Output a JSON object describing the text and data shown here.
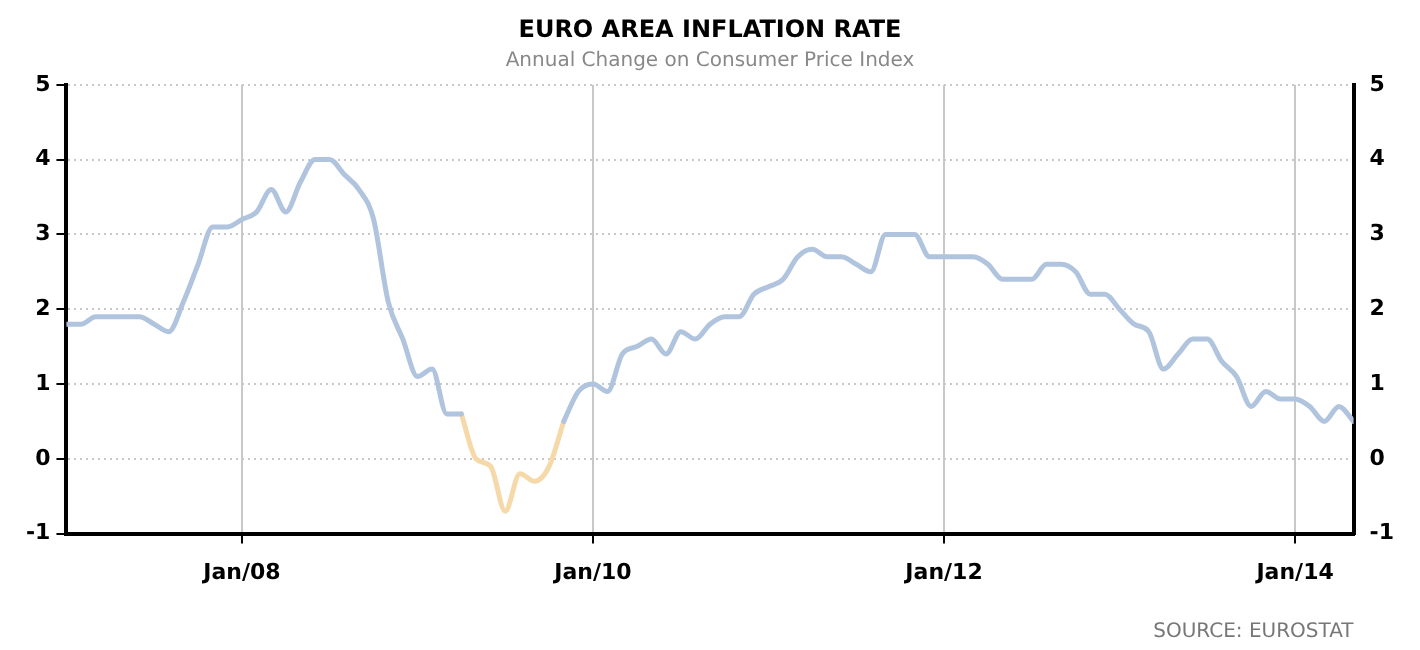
{
  "chart_data": {
    "type": "line",
    "title": "EURO AREA INFLATION RATE",
    "subtitle": "Annual Change on Consumer Price Index",
    "annotations": [
      "SOURCE: EUROSTAT"
    ],
    "x": [
      "2007-01",
      "2007-02",
      "2007-03",
      "2007-04",
      "2007-05",
      "2007-06",
      "2007-07",
      "2007-08",
      "2007-09",
      "2007-10",
      "2007-11",
      "2007-12",
      "2008-01",
      "2008-02",
      "2008-03",
      "2008-04",
      "2008-05",
      "2008-06",
      "2008-07",
      "2008-08",
      "2008-09",
      "2008-10",
      "2008-11",
      "2008-12",
      "2009-01",
      "2009-02",
      "2009-03",
      "2009-04",
      "2009-05",
      "2009-06",
      "2009-07",
      "2009-08",
      "2009-09",
      "2009-10",
      "2009-11",
      "2009-12",
      "2010-01",
      "2010-02",
      "2010-03",
      "2010-04",
      "2010-05",
      "2010-06",
      "2010-07",
      "2010-08",
      "2010-09",
      "2010-10",
      "2010-11",
      "2010-12",
      "2011-01",
      "2011-02",
      "2011-03",
      "2011-04",
      "2011-05",
      "2011-06",
      "2011-07",
      "2011-08",
      "2011-09",
      "2011-10",
      "2011-11",
      "2011-12",
      "2012-01",
      "2012-02",
      "2012-03",
      "2012-04",
      "2012-05",
      "2012-06",
      "2012-07",
      "2012-08",
      "2012-09",
      "2012-10",
      "2012-11",
      "2012-12",
      "2013-01",
      "2013-02",
      "2013-03",
      "2013-04",
      "2013-05",
      "2013-06",
      "2013-07",
      "2013-08",
      "2013-09",
      "2013-10",
      "2013-11",
      "2013-12",
      "2014-01",
      "2014-02",
      "2014-03",
      "2014-04",
      "2014-05"
    ],
    "series": [
      {
        "color": "#b0c4de",
        "values": [
          1.8,
          1.8,
          1.9,
          1.9,
          1.9,
          1.9,
          1.8,
          1.7,
          2.1,
          2.6,
          3.1,
          3.1,
          3.2,
          3.3,
          3.6,
          3.3,
          3.7,
          4.0,
          4.0,
          3.8,
          3.6,
          3.2,
          2.1,
          1.6,
          1.1,
          1.2,
          0.6,
          0.6,
          null,
          null,
          null,
          null,
          null,
          null,
          0.5,
          0.9,
          1.0,
          0.9,
          1.4,
          1.5,
          1.6,
          1.4,
          1.7,
          1.6,
          1.8,
          1.9,
          1.9,
          2.2,
          2.3,
          2.4,
          2.7,
          2.8,
          2.7,
          2.7,
          2.6,
          2.5,
          3.0,
          3.0,
          3.0,
          2.7,
          2.7,
          2.7,
          2.7,
          2.6,
          2.4,
          2.4,
          2.4,
          2.6,
          2.6,
          2.5,
          2.2,
          2.2,
          2.0,
          1.8,
          1.7,
          1.2,
          1.4,
          1.6,
          1.6,
          1.3,
          1.1,
          0.7,
          0.9,
          0.8,
          0.8,
          0.7,
          0.5,
          0.7,
          0.5
        ]
      },
      {
        "color": "#f5d9a8",
        "values": [
          null,
          null,
          null,
          null,
          null,
          null,
          null,
          null,
          null,
          null,
          null,
          null,
          null,
          null,
          null,
          null,
          null,
          null,
          null,
          null,
          null,
          null,
          null,
          null,
          null,
          null,
          null,
          0.6,
          0.0,
          -0.1,
          -0.7,
          -0.2,
          -0.3,
          -0.1,
          0.5,
          null,
          null,
          null,
          null,
          null,
          null,
          null,
          null,
          null,
          null,
          null,
          null,
          null,
          null,
          null,
          null,
          null,
          null,
          null,
          null,
          null,
          null,
          null,
          null,
          null,
          null,
          null,
          null,
          null,
          null,
          null,
          null,
          null,
          null,
          null,
          null,
          null,
          null,
          null,
          null,
          null,
          null,
          null,
          null,
          null,
          null,
          null,
          null,
          null,
          null,
          null,
          null,
          null,
          null
        ]
      }
    ],
    "xlim": [
      "2007-01",
      "2014-05"
    ],
    "xticks": [
      {
        "value": "2008-01",
        "label": "Jan/08"
      },
      {
        "value": "2010-01",
        "label": "Jan/10"
      },
      {
        "value": "2012-01",
        "label": "Jan/12"
      },
      {
        "value": "2014-01",
        "label": "Jan/14"
      }
    ],
    "ylim": [
      -1,
      5
    ],
    "yticks": [
      -1,
      0,
      1,
      2,
      3,
      4,
      5
    ],
    "y2lim": [
      -1,
      5
    ],
    "y2ticks": [
      -1,
      0,
      1,
      2,
      3,
      4,
      5
    ],
    "grid": true,
    "legend": false,
    "marker": "none",
    "line_style": "solid"
  }
}
